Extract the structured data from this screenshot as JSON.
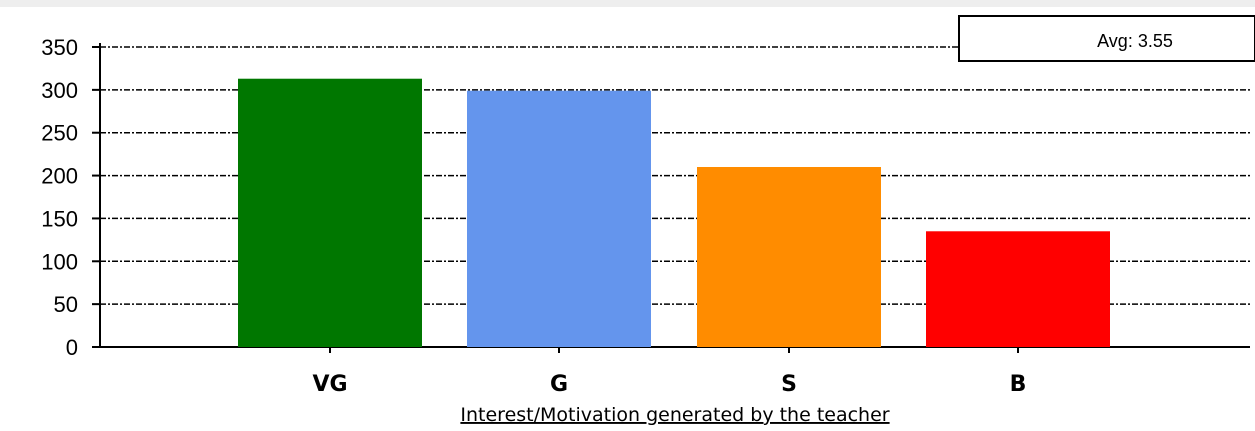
{
  "chart_data": {
    "type": "bar",
    "categories": [
      "VG",
      "G",
      "S",
      "B"
    ],
    "values": [
      313,
      299,
      210,
      135
    ],
    "colors": [
      "#007700",
      "#6495ed",
      "#ff8c00",
      "#ff0000"
    ],
    "xlabel": "Interest/Motivation generated by the teacher",
    "ylabel": "",
    "ylim": [
      0,
      350
    ],
    "yticks": [
      0,
      50,
      100,
      150,
      200,
      250,
      300,
      350
    ],
    "grid": true,
    "annotation": "Avg: 3.55"
  }
}
